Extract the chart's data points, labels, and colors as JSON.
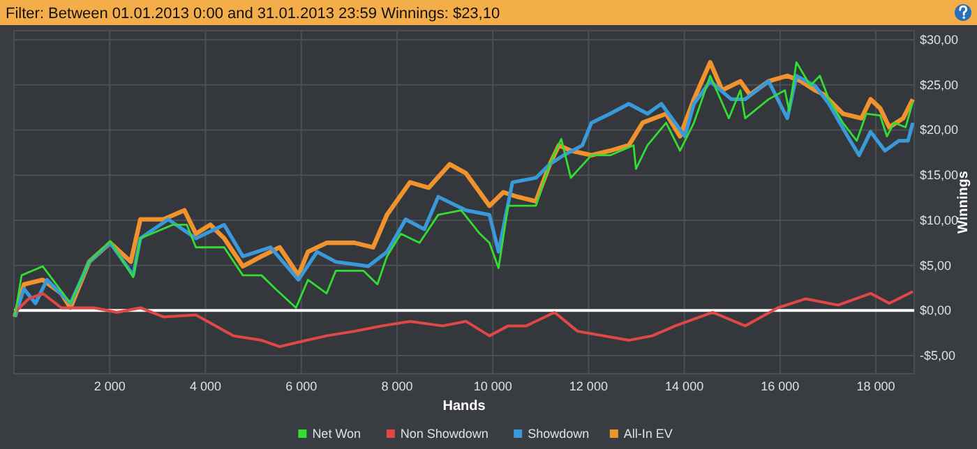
{
  "chart_data": {
    "type": "line",
    "title": "Filter: Between 01.01.2013 0:00 and 31.01.2013 23:59 Winnings: $23,10",
    "xlabel": "Hands",
    "y2label": "Winnings",
    "xlim": [
      0,
      18800
    ],
    "xticks": [
      {
        "value": 2000,
        "label": "2 000"
      },
      {
        "value": 4000,
        "label": "4 000"
      },
      {
        "value": 6000,
        "label": "6 000"
      },
      {
        "value": 8000,
        "label": "8 000"
      },
      {
        "value": 10000,
        "label": "10 000"
      },
      {
        "value": 12000,
        "label": "12 000"
      },
      {
        "value": 14000,
        "label": "14 000"
      },
      {
        "value": 16000,
        "label": "16 000"
      },
      {
        "value": 18000,
        "label": "18 000"
      }
    ],
    "y2lim": [
      -7,
      31
    ],
    "y2ticks": [
      {
        "value": -5,
        "label": "-$5,00"
      },
      {
        "value": 0,
        "label": "$0,00"
      },
      {
        "value": 5,
        "label": "$5,00"
      },
      {
        "value": 10,
        "label": "$10,00"
      },
      {
        "value": 15,
        "label": "$15,00"
      },
      {
        "value": 20,
        "label": "$20,00"
      },
      {
        "value": 25,
        "label": "$25,00"
      },
      {
        "value": 30,
        "label": "$30,00"
      }
    ],
    "grid": true,
    "legend": "bottom",
    "line_style": "solid",
    "marker": "none",
    "ref_lines": [
      {
        "axis": "y2",
        "value": 0,
        "color": "#ffffff"
      }
    ],
    "series": [
      {
        "name": "Net Won",
        "color": "#33dd33",
        "axis": "y2",
        "x": [
          15,
          160,
          600,
          1180,
          1570,
          2010,
          2490,
          2640,
          3320,
          3610,
          3800,
          4390,
          4780,
          5170,
          5460,
          5890,
          6140,
          6530,
          6720,
          7300,
          7590,
          7790,
          8080,
          8470,
          8860,
          9340,
          9730,
          9930,
          10120,
          10320,
          10900,
          11190,
          11430,
          11630,
          12060,
          12450,
          12940,
          12990,
          13230,
          13620,
          13910,
          14200,
          14540,
          14930,
          15170,
          15270,
          15760,
          16100,
          16190,
          16340,
          16630,
          16830,
          17020,
          17310,
          17600,
          17800,
          18090,
          18230,
          18380,
          18620,
          18770
        ],
        "values": [
          -0.7,
          3.9,
          4.9,
          0.8,
          5.4,
          7.7,
          3.7,
          8.0,
          9.5,
          9.5,
          7.0,
          7.0,
          3.9,
          3.9,
          2.4,
          0.3,
          3.4,
          1.9,
          4.4,
          4.4,
          2.9,
          6.0,
          8.5,
          7.5,
          10.6,
          11.1,
          8.5,
          7.5,
          4.7,
          11.6,
          11.6,
          16.2,
          19.0,
          14.7,
          17.2,
          17.2,
          18.3,
          15.7,
          18.3,
          20.8,
          17.7,
          20.8,
          26.0,
          21.3,
          24.4,
          21.3,
          23.4,
          24.4,
          22.1,
          27.5,
          24.9,
          26.0,
          23.4,
          20.8,
          18.8,
          21.8,
          21.6,
          19.3,
          20.8,
          20.3,
          23.1
        ]
      },
      {
        "name": "Non Showdown",
        "color": "#e04848",
        "axis": "y2",
        "x": [
          15,
          310,
          600,
          990,
          1670,
          2150,
          2640,
          3120,
          3800,
          4580,
          5170,
          5550,
          5940,
          6530,
          7110,
          7690,
          8270,
          8950,
          9440,
          9930,
          10320,
          10700,
          11290,
          11770,
          12840,
          13330,
          13810,
          14590,
          15270,
          15950,
          16530,
          17210,
          17890,
          18280,
          18770
        ],
        "values": [
          -0.2,
          1.3,
          1.9,
          0.3,
          0.3,
          -0.2,
          0.3,
          -0.7,
          -0.5,
          -2.8,
          -3.3,
          -4.0,
          -3.5,
          -2.8,
          -2.3,
          -1.7,
          -1.2,
          -1.7,
          -1.2,
          -2.8,
          -1.7,
          -1.7,
          -0.2,
          -2.3,
          -3.3,
          -2.8,
          -1.7,
          -0.2,
          -1.7,
          0.3,
          1.3,
          0.6,
          1.9,
          0.8,
          2.1
        ]
      },
      {
        "name": "Showdown",
        "color": "#3a9ad9",
        "axis": "y2",
        "x": [
          15,
          210,
          450,
          690,
          1180,
          1570,
          2010,
          2490,
          2640,
          3220,
          3800,
          4390,
          4780,
          5360,
          5940,
          6330,
          6720,
          7400,
          7790,
          8180,
          8570,
          8860,
          9440,
          9930,
          10120,
          10410,
          10900,
          11190,
          11480,
          11870,
          12060,
          12450,
          12840,
          13230,
          13520,
          14010,
          14200,
          14540,
          14980,
          15270,
          15760,
          16150,
          16340,
          16730,
          17020,
          17410,
          17650,
          17890,
          18190,
          18480,
          18670,
          18770
        ],
        "values": [
          -0.7,
          2.4,
          0.8,
          3.4,
          0.8,
          5.4,
          7.5,
          3.9,
          8.0,
          10.1,
          8.0,
          9.5,
          6.0,
          7.0,
          3.4,
          6.5,
          5.4,
          4.9,
          6.5,
          10.1,
          9.0,
          12.6,
          11.1,
          10.6,
          6.5,
          14.2,
          14.7,
          16.2,
          17.2,
          18.3,
          20.8,
          21.8,
          22.9,
          21.8,
          22.9,
          19.3,
          22.9,
          25.4,
          23.4,
          23.4,
          25.4,
          21.3,
          26.0,
          24.9,
          22.9,
          19.3,
          17.2,
          19.8,
          17.7,
          18.8,
          18.8,
          20.8
        ]
      },
      {
        "name": "All-In EV",
        "color": "#f0922e",
        "axis": "y2",
        "x": [
          15,
          210,
          600,
          990,
          1180,
          1570,
          2010,
          2440,
          2640,
          3120,
          3560,
          3800,
          4100,
          4390,
          4780,
          5170,
          5550,
          5940,
          6140,
          6530,
          7110,
          7500,
          7790,
          8270,
          8660,
          9100,
          9440,
          9930,
          10220,
          10510,
          10900,
          11190,
          11380,
          11630,
          12060,
          12450,
          12840,
          13130,
          13620,
          13910,
          14200,
          14540,
          14790,
          15170,
          15370,
          15760,
          16150,
          16440,
          16730,
          16920,
          17310,
          17700,
          17890,
          18090,
          18280,
          18570,
          18770
        ],
        "values": [
          -0.7,
          2.9,
          3.4,
          1.9,
          0.3,
          5.4,
          7.5,
          5.4,
          10.1,
          10.1,
          11.1,
          8.5,
          9.5,
          8.0,
          4.9,
          6.0,
          7.0,
          3.9,
          6.5,
          7.5,
          7.5,
          7.0,
          10.6,
          14.2,
          13.6,
          16.2,
          15.2,
          11.6,
          13.1,
          12.6,
          12.1,
          16.2,
          18.3,
          17.7,
          17.2,
          17.7,
          18.3,
          20.8,
          21.8,
          19.3,
          23.4,
          27.5,
          24.4,
          25.4,
          23.9,
          25.4,
          26.0,
          25.4,
          24.4,
          23.9,
          21.8,
          21.3,
          23.4,
          22.4,
          20.3,
          21.3,
          23.4
        ]
      }
    ]
  }
}
